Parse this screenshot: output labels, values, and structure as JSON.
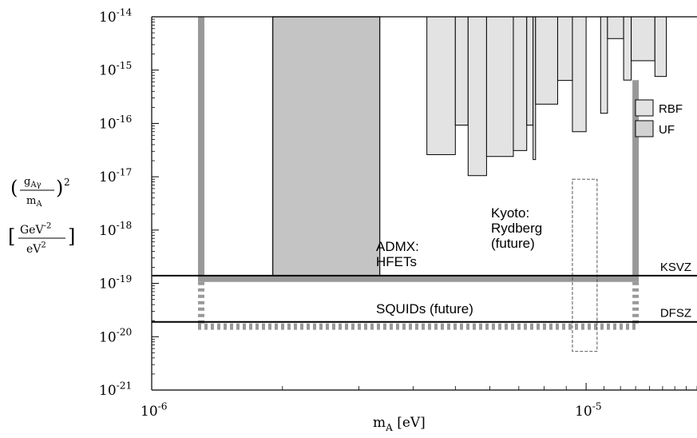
{
  "chart_data": {
    "type": "area",
    "x_scale": "log",
    "y_scale": "log",
    "xlim": [
      1e-06,
      1.8e-05
    ],
    "ylim": [
      1e-21,
      1e-14
    ],
    "xlabel": {
      "main": "m",
      "sub": "A",
      "unit": "[eV]"
    },
    "ylabel": {
      "top_num_main": "g",
      "top_num_sub": "Aγ",
      "top_den_main": "m",
      "top_den_sub": "A",
      "top_exp": "2",
      "bottom_num_main": "GeV",
      "bottom_num_exp": "-2",
      "bottom_den_main": "eV",
      "bottom_den_exp": "2"
    },
    "x_ticks": [
      {
        "value": 1e-06,
        "base": "10",
        "exp": "-6"
      },
      {
        "value": 1e-05,
        "base": "10",
        "exp": "-5"
      }
    ],
    "y_ticks": [
      {
        "value": 1e-14,
        "base": "10",
        "exp": "-14"
      },
      {
        "value": 1e-15,
        "base": "10",
        "exp": "-15"
      },
      {
        "value": 1e-16,
        "base": "10",
        "exp": "-16"
      },
      {
        "value": 1e-17,
        "base": "10",
        "exp": "-17"
      },
      {
        "value": 1e-18,
        "base": "10",
        "exp": "-18"
      },
      {
        "value": 1e-19,
        "base": "10",
        "exp": "-19"
      },
      {
        "value": 1e-20,
        "base": "10",
        "exp": "-20"
      },
      {
        "value": 1e-21,
        "base": "10",
        "exp": "-21"
      }
    ],
    "legend": {
      "placement": "right",
      "items": [
        {
          "label": "RBF",
          "color": "#e3e3e3"
        },
        {
          "label": "UF",
          "color": "#d2d2d2"
        }
      ]
    },
    "reference_lines": [
      {
        "label": "KSVZ",
        "y": 1.4e-19
      },
      {
        "label": "DFSZ",
        "y": 1.9e-20
      }
    ],
    "excluded_regions": [
      {
        "name": "ADMX HFETs",
        "x": [
          1.9e-06,
          3.35e-06
        ],
        "y": [
          1.2e-19,
          1e-14
        ],
        "color": "#c4c4c4"
      },
      {
        "name": "RBF/UF steps",
        "color": "#e3e3e3",
        "segments": [
          {
            "x": [
              4.3e-06,
              5e-06
            ],
            "y": 2.6e-17
          },
          {
            "x": [
              5e-06,
              5.35e-06
            ],
            "y": 9.3e-17
          },
          {
            "x": [
              5.35e-06,
              5.9e-06
            ],
            "y": 1.05e-17
          },
          {
            "x": [
              5.9e-06,
              6.8e-06
            ],
            "y": 2.4e-17
          },
          {
            "x": [
              6.8e-06,
              7.3e-06
            ],
            "y": 3.1e-17
          },
          {
            "x": [
              7.3e-06,
              7.55e-06
            ],
            "y": 9.3e-17
          },
          {
            "x": [
              7.55e-06,
              7.65e-06
            ],
            "y": 2.1e-17
          },
          {
            "x": [
              7.65e-06,
              8.6e-06
            ],
            "y": 2.3e-16
          },
          {
            "x": [
              8.6e-06,
              9.3e-06
            ],
            "y": 6.4e-16
          },
          {
            "x": [
              9.3e-06,
              1e-05
            ],
            "y": 7e-17
          },
          {
            "x": [
              1.08e-05,
              1.12e-05
            ],
            "y": 1.55e-16
          },
          {
            "x": [
              1.12e-05,
              1.22e-05
            ],
            "y": 3.9e-15
          },
          {
            "x": [
              1.22e-05,
              1.27e-05
            ],
            "y": 6.5e-16
          },
          {
            "x": [
              1.27e-05,
              1.44e-05
            ],
            "y": 1.5e-15
          },
          {
            "x": [
              1.44e-05,
              1.53e-05
            ],
            "y": 7.6e-16
          }
        ]
      }
    ],
    "sensitivity_regions": [
      {
        "label": [
          "ADMX:",
          "HFETs"
        ],
        "style": "solid",
        "color": "#999999",
        "x": [
          1.3e-06,
          1.3e-05
        ],
        "y_bottom": 1.22e-19,
        "y_top": 1e-14
      },
      {
        "label": [
          "SQUIDs (future)"
        ],
        "style": "dashed",
        "color": "#999999",
        "x": [
          1.3e-06,
          1.3e-05
        ],
        "y_top": 1.22e-19,
        "y_bottom": 1.55e-20
      },
      {
        "label": [
          "Kyoto:",
          "Rydberg",
          "(future)"
        ],
        "style": "thin-dashed",
        "color": "#444444",
        "x": [
          9.3e-06,
          1.06e-05
        ],
        "y_top": 9e-18,
        "y_bottom": 5.3e-21
      }
    ]
  }
}
